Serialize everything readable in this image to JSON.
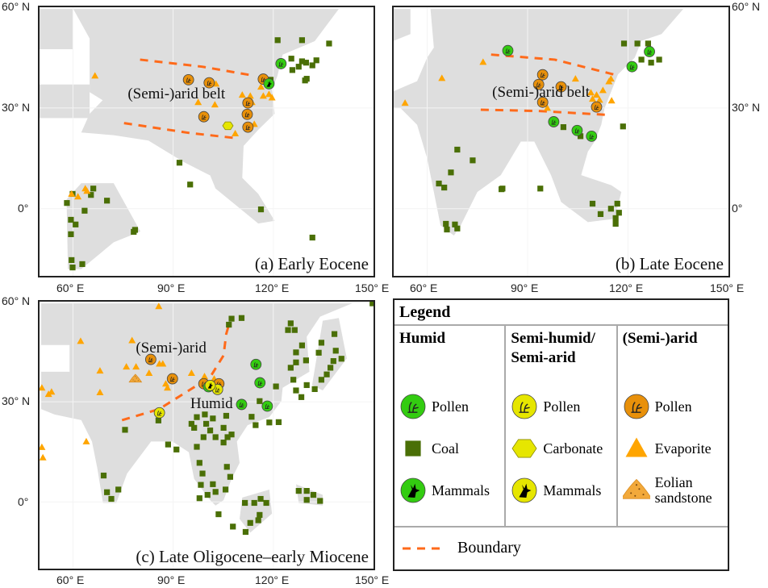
{
  "axes": {
    "x_ticks": [
      "60° E",
      "90° E",
      "120° E",
      "150° E"
    ],
    "y_ticks": [
      "60° N",
      "30° N",
      "0°"
    ]
  },
  "colors": {
    "land": "#dedede",
    "coal": "#4a6f06",
    "evaporite": "#ffa500",
    "pollen_humid": "#33cc11",
    "pollen_semi": "#e6e600",
    "pollen_arid": "#e8900a",
    "eolian": "#f2a93b",
    "boundary": "#ff6a1a"
  },
  "panels": [
    {
      "title": "(a) Early Eocene",
      "labels": [
        {
          "text": "(Semi-)arid belt",
          "lon": 91,
          "lat": 34
        }
      ],
      "boundaries": [
        [
          [
            80.1,
            44.4
          ],
          [
            98.7,
            42.3
          ],
          [
            114.3,
            39.6
          ]
        ],
        [
          [
            75.3,
            25.5
          ],
          [
            94.6,
            22.6
          ],
          [
            109,
            21
          ]
        ]
      ],
      "markers": {
        "coal": [
          [
            121.3,
            50.2
          ],
          [
            128.6,
            50.2
          ],
          [
            136.7,
            49.2
          ],
          [
            125.4,
            44.7
          ],
          [
            128.6,
            43.9
          ],
          [
            131.7,
            42.7
          ],
          [
            125.7,
            41.3
          ],
          [
            127.6,
            42.3
          ],
          [
            129.8,
            43.5
          ],
          [
            132.9,
            44.2
          ],
          [
            130,
            38.7
          ],
          [
            129.5,
            38.2
          ],
          [
            119.2,
            38.4
          ],
          [
            91.9,
            13.7
          ],
          [
            95.1,
            7.2
          ],
          [
            116.3,
            -0.2
          ],
          [
            131.7,
            -8.6
          ],
          [
            58.2,
            1.7
          ],
          [
            59.9,
            4.4
          ],
          [
            65.4,
            4.1
          ],
          [
            66.1,
            6
          ],
          [
            70.2,
            2.4
          ],
          [
            63.5,
            -0.6
          ],
          [
            59.4,
            -3.3
          ],
          [
            60.8,
            -4.7
          ],
          [
            59.4,
            -7.6
          ],
          [
            78.2,
            -6.9
          ],
          [
            78.6,
            -6.3
          ],
          [
            59.6,
            -15.3
          ],
          [
            59.9,
            -17.5
          ],
          [
            62.8,
            -16.5
          ]
        ],
        "evaporite": [
          [
            66.6,
            39.6
          ],
          [
            97.5,
            31.7
          ],
          [
            102.5,
            31
          ],
          [
            102.8,
            37.2
          ],
          [
            110.7,
            33.9
          ],
          [
            113.1,
            33.6
          ],
          [
            116.3,
            36.3
          ],
          [
            117,
            33.6
          ],
          [
            118.7,
            34.1
          ],
          [
            119.6,
            33.1
          ],
          [
            114.3,
            25.2
          ],
          [
            108.6,
            22.4
          ],
          [
            113.6,
            31.7
          ],
          [
            59.6,
            4.4
          ],
          [
            61.5,
            3.6
          ],
          [
            63.7,
            6
          ],
          [
            64.2,
            5.3
          ]
        ],
        "pollen_arid": [
          [
            94.6,
            38.4
          ],
          [
            100.8,
            37.5
          ],
          [
            117,
            38.6
          ],
          [
            112.4,
            31.5
          ],
          [
            112.2,
            28.1
          ],
          [
            112.4,
            24.3
          ],
          [
            99.2,
            27.4
          ]
        ],
        "pollen_humid": [
          [
            122.3,
            43.2
          ]
        ],
        "mammals_humid": [
          [
            118.7,
            37.2
          ]
        ],
        "carbonate": [
          [
            106.4,
            24.7
          ]
        ],
        "pollen_semi": [],
        "mammals_semi": [],
        "eolian": []
      }
    },
    {
      "title": "(b) Late Eocene",
      "labels": [
        {
          "text": "(Semi-)arid belt",
          "lon": 94,
          "lat": 34.5
        }
      ],
      "boundaries": [
        [
          [
            79.1,
            45.9
          ],
          [
            98.1,
            44.4
          ],
          [
            117.3,
            39.6
          ]
        ],
        [
          [
            76,
            29.5
          ],
          [
            93.3,
            29.1
          ],
          [
            114.9,
            27.9
          ]
        ]
      ],
      "markers": {
        "coal": [
          [
            118.8,
            49.2
          ],
          [
            122.8,
            49.2
          ],
          [
            126,
            49.2
          ],
          [
            124,
            44.4
          ],
          [
            126.9,
            43.5
          ],
          [
            129.3,
            44.4
          ],
          [
            100.7,
            24.3
          ],
          [
            105.8,
            21.6
          ],
          [
            118.5,
            24.5
          ],
          [
            69,
            17.6
          ],
          [
            73.6,
            14.4
          ],
          [
            67.1,
            10.8
          ],
          [
            63.5,
            7.5
          ],
          [
            65.1,
            6.3
          ],
          [
            82.5,
            6
          ],
          [
            82.2,
            5.8
          ],
          [
            93.8,
            6
          ],
          [
            109.4,
            1.5
          ],
          [
            111.8,
            -1.6
          ],
          [
            114.9,
            0
          ],
          [
            116.8,
            1.5
          ],
          [
            117.3,
            -1.2
          ],
          [
            116.3,
            -2.8
          ],
          [
            116.3,
            -4.5
          ],
          [
            65.6,
            -4.5
          ],
          [
            65.9,
            -6.2
          ],
          [
            68.3,
            -4.7
          ],
          [
            69,
            -5.9
          ]
        ],
        "evaporite": [
          [
            76.7,
            43.7
          ],
          [
            64.4,
            38.9
          ],
          [
            53.4,
            31.5
          ],
          [
            104.3,
            38.7
          ],
          [
            108.9,
            34.6
          ],
          [
            110.6,
            33.9
          ],
          [
            109.4,
            32.7
          ],
          [
            111.5,
            32.4
          ],
          [
            112.5,
            35.3
          ],
          [
            114.9,
            38.7
          ],
          [
            114.3,
            37.9
          ],
          [
            115.1,
            32.2
          ],
          [
            95.9,
            30
          ]
        ],
        "pollen_arid": [
          [
            94.5,
            39.9
          ],
          [
            93.3,
            37
          ],
          [
            100,
            36.3
          ],
          [
            94.5,
            31.7
          ],
          [
            110.6,
            30.3
          ]
        ],
        "pollen_humid": [
          [
            84.1,
            47.1
          ],
          [
            126.4,
            46.8
          ],
          [
            121.2,
            42.3
          ],
          [
            97.8,
            25.9
          ],
          [
            104.8,
            23.3
          ],
          [
            109.1,
            21.6
          ]
        ],
        "mammals_humid": [],
        "carbonate": [],
        "pollen_semi": [],
        "mammals_semi": [],
        "eolian": []
      }
    },
    {
      "title": "(c) Late Oligocene–early Miocene",
      "labels": [
        {
          "text": "(Semi-)arid",
          "lon": 89.4,
          "lat": 46.1
        },
        {
          "text": "Humid",
          "lon": 101.5,
          "lat": 29.4
        }
      ],
      "boundaries": [
        [
          [
            74.7,
            24.5
          ],
          [
            85.8,
            27.8
          ],
          [
            101.1,
            37.4
          ],
          [
            105.1,
            43.9
          ],
          [
            105.9,
            50.3
          ],
          [
            106.7,
            53.1
          ]
        ]
      ],
      "markers": {
        "coal": [
          [
            107.5,
            54.9
          ],
          [
            110.5,
            55.1
          ],
          [
            106.7,
            53.1
          ],
          [
            125.2,
            53.5
          ],
          [
            124.4,
            51.5
          ],
          [
            126.4,
            51.5
          ],
          [
            138.3,
            50.3
          ],
          [
            134.4,
            47.7
          ],
          [
            128.6,
            46.9
          ],
          [
            126.8,
            44.8
          ],
          [
            129.8,
            42.4
          ],
          [
            133.6,
            44.7
          ],
          [
            138.7,
            45.3
          ],
          [
            140.4,
            42.9
          ],
          [
            138,
            42.2
          ],
          [
            126.8,
            41.8
          ],
          [
            125.2,
            40.2
          ],
          [
            137.1,
            40.2
          ],
          [
            136,
            38.2
          ],
          [
            134.4,
            36.6
          ],
          [
            132.4,
            33.8
          ],
          [
            130,
            35
          ],
          [
            126,
            36.6
          ],
          [
            126.8,
            33.4
          ],
          [
            128.4,
            31.4
          ],
          [
            120.8,
            34.6
          ],
          [
            115.9,
            30.2
          ],
          [
            105.9,
            25.8
          ],
          [
            113.5,
            25.5
          ],
          [
            114.7,
            23
          ],
          [
            118.8,
            23.8
          ],
          [
            121.6,
            23.9
          ],
          [
            97.1,
            25.4
          ],
          [
            99.5,
            26.2
          ],
          [
            101.9,
            25
          ],
          [
            99.9,
            23.4
          ],
          [
            95.5,
            23.4
          ],
          [
            96.3,
            22.2
          ],
          [
            101.1,
            21.4
          ],
          [
            105.1,
            22.2
          ],
          [
            107.5,
            20.2
          ],
          [
            106.3,
            19.4
          ],
          [
            102.7,
            19.4
          ],
          [
            105.1,
            17.8
          ],
          [
            99.1,
            19.4
          ],
          [
            97.1,
            16.5
          ],
          [
            88.5,
            17.2
          ],
          [
            91,
            15.7
          ],
          [
            85.6,
            24.4
          ],
          [
            75.6,
            21.6
          ],
          [
            69.2,
            7.9
          ],
          [
            70.2,
            2.9
          ],
          [
            71.5,
            0.9
          ],
          [
            73.6,
            3.7
          ],
          [
            97.9,
            11.7
          ],
          [
            98.8,
            8.5
          ],
          [
            106.1,
            10.5
          ],
          [
            107.1,
            7.5
          ],
          [
            98.3,
            5.1
          ],
          [
            101.9,
            5.3
          ],
          [
            100.3,
            2.1
          ],
          [
            97.9,
            1.1
          ],
          [
            102.7,
            3
          ],
          [
            105.7,
            3.7
          ],
          [
            103.6,
            -3.7
          ],
          [
            107.9,
            -7.4
          ],
          [
            111.7,
            -9
          ],
          [
            113.1,
            -6.3
          ],
          [
            111.5,
            -0.3
          ],
          [
            114.3,
            -0.3
          ],
          [
            116.2,
            0.9
          ],
          [
            117.9,
            -0.3
          ],
          [
            115.9,
            -3.9
          ],
          [
            115.5,
            -5.5
          ],
          [
            127.6,
            3.3
          ],
          [
            130,
            3.3
          ],
          [
            132,
            2.1
          ],
          [
            134,
            0.3
          ],
          [
            130,
            0.6
          ],
          [
            149.7,
            59.5
          ]
        ],
        "evaporite": [
          [
            85.7,
            58.6
          ],
          [
            62.3,
            48.2
          ],
          [
            77.7,
            48.4
          ],
          [
            68.1,
            39.3
          ],
          [
            76,
            40.5
          ],
          [
            78.9,
            40.5
          ],
          [
            85.9,
            41.4
          ],
          [
            86.9,
            41.4
          ],
          [
            82.8,
            38.6
          ],
          [
            95.5,
            38.6
          ],
          [
            99.4,
            37.6
          ],
          [
            87.8,
            35.4
          ],
          [
            88.3,
            34.2
          ],
          [
            50.7,
            34.2
          ],
          [
            53.6,
            33
          ],
          [
            52.7,
            32.3
          ],
          [
            68.1,
            32.8
          ],
          [
            64,
            18.1
          ],
          [
            50.7,
            16.4
          ],
          [
            51,
            13.3
          ],
          [
            102.3,
            36.9
          ]
        ],
        "pollen_arid": [
          [
            83.3,
            42.7
          ],
          [
            89.8,
            36.9
          ],
          [
            99.2,
            35.4
          ],
          [
            103.7,
            35.4
          ]
        ],
        "pollen_humid": [
          [
            114.8,
            41.2
          ],
          [
            116,
            35.7
          ],
          [
            110.5,
            29.2
          ],
          [
            118.2,
            28.7
          ],
          [
            100.6,
            34.5
          ]
        ],
        "pollen_semi": [
          [
            85.9,
            26.7
          ],
          [
            103.3,
            33.7
          ]
        ],
        "mammals_semi": [
          [
            101.1,
            34.9
          ]
        ],
        "eolian": [
          [
            78.7,
            36.9
          ]
        ],
        "mammals_humid": [],
        "carbonate": []
      }
    }
  ],
  "legend": {
    "title": "Legend",
    "columns": [
      {
        "heading": "Humid",
        "items": [
          "Pollen",
          "Coal",
          "Mammals"
        ]
      },
      {
        "heading": "Semi-humid/ Semi-arid",
        "items": [
          "Pollen",
          "Carbonate",
          "Mammals"
        ]
      },
      {
        "heading": "(Semi-)arid",
        "items": [
          "Pollen",
          "Evaporite",
          "Eolian sandstone"
        ]
      }
    ],
    "boundary_label": "Boundary"
  }
}
